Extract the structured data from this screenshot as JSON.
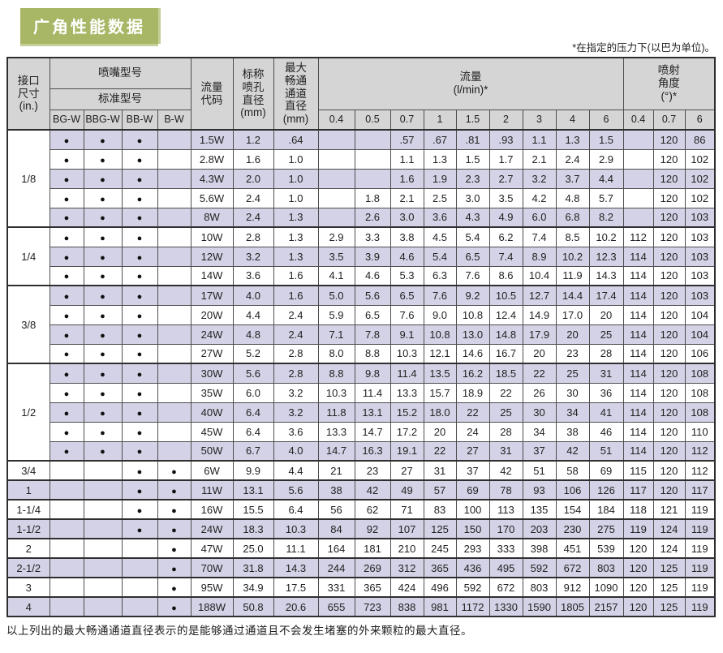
{
  "title": "广角性能数据",
  "pressure_note": "*在指定的压力下(以巴为单位)。",
  "footer_note": "以上列出的最大畅通通道直径表示的是能够通过通道且不会发生堵塞的外来颗粒的最大直径。",
  "colors": {
    "accent_green": "#a7b766",
    "header_gray": "#d5d5d5",
    "stripe_lavender": "#d3d2e6"
  },
  "table": {
    "headers": {
      "size": "接口\n尺寸\n(in.)",
      "nozzle_model": "喷嘴型号",
      "standard_model": "标准型号",
      "flow_code": "流量\n代码",
      "orifice": "标称\n喷孔\n直径\n(mm)",
      "passage": "最大\n畅通\n通道\n直径\n(mm)",
      "flow": "流量\n(l/min)*",
      "angle": "喷射\n角度\n(°)*"
    },
    "model_columns": [
      "BG-W",
      "BBG-W",
      "BB-W",
      "B-W"
    ],
    "flow_pressures": [
      "0.4",
      "0.5",
      "0.7",
      "1",
      "1.5",
      "2",
      "3",
      "4",
      "6"
    ],
    "angle_pressures": [
      "0.4",
      "0.7",
      "6"
    ],
    "groups": [
      {
        "size": "1/8",
        "rows": [
          {
            "models": [
              1,
              1,
              1,
              0
            ],
            "code": "1.5W",
            "orifice": "1.2",
            "passage": ".64",
            "flow": [
              "",
              "",
              ".57",
              ".67",
              ".81",
              ".93",
              "1.1",
              "1.3",
              "1.5"
            ],
            "angle": [
              "",
              "120",
              "86"
            ]
          },
          {
            "models": [
              1,
              1,
              1,
              0
            ],
            "code": "2.8W",
            "orifice": "1.6",
            "passage": "1.0",
            "flow": [
              "",
              "",
              "1.1",
              "1.3",
              "1.5",
              "1.7",
              "2.1",
              "2.4",
              "2.9"
            ],
            "angle": [
              "",
              "120",
              "102"
            ]
          },
          {
            "models": [
              1,
              1,
              1,
              0
            ],
            "code": "4.3W",
            "orifice": "2.0",
            "passage": "1.0",
            "flow": [
              "",
              "",
              "1.6",
              "1.9",
              "2.3",
              "2.7",
              "3.2",
              "3.7",
              "4.4"
            ],
            "angle": [
              "",
              "120",
              "102"
            ]
          },
          {
            "models": [
              1,
              1,
              1,
              0
            ],
            "code": "5.6W",
            "orifice": "2.4",
            "passage": "1.0",
            "flow": [
              "",
              "1.8",
              "2.1",
              "2.5",
              "3.0",
              "3.5",
              "4.2",
              "4.8",
              "5.7"
            ],
            "angle": [
              "",
              "120",
              "102"
            ]
          },
          {
            "models": [
              1,
              1,
              1,
              0
            ],
            "code": "8W",
            "orifice": "2.4",
            "passage": "1.3",
            "flow": [
              "",
              "2.6",
              "3.0",
              "3.6",
              "4.3",
              "4.9",
              "6.0",
              "6.8",
              "8.2"
            ],
            "angle": [
              "",
              "120",
              "103"
            ]
          }
        ]
      },
      {
        "size": "1/4",
        "rows": [
          {
            "models": [
              1,
              1,
              1,
              0
            ],
            "code": "10W",
            "orifice": "2.8",
            "passage": "1.3",
            "flow": [
              "2.9",
              "3.3",
              "3.8",
              "4.5",
              "5.4",
              "6.2",
              "7.4",
              "8.5",
              "10.2"
            ],
            "angle": [
              "112",
              "120",
              "103"
            ]
          },
          {
            "models": [
              1,
              1,
              1,
              0
            ],
            "code": "12W",
            "orifice": "3.2",
            "passage": "1.3",
            "flow": [
              "3.5",
              "3.9",
              "4.6",
              "5.4",
              "6.5",
              "7.4",
              "8.9",
              "10.2",
              "12.3"
            ],
            "angle": [
              "114",
              "120",
              "103"
            ]
          },
          {
            "models": [
              1,
              1,
              1,
              0
            ],
            "code": "14W",
            "orifice": "3.6",
            "passage": "1.6",
            "flow": [
              "4.1",
              "4.6",
              "5.3",
              "6.3",
              "7.6",
              "8.6",
              "10.4",
              "11.9",
              "14.3"
            ],
            "angle": [
              "114",
              "120",
              "103"
            ]
          }
        ]
      },
      {
        "size": "3/8",
        "rows": [
          {
            "models": [
              1,
              1,
              1,
              0
            ],
            "code": "17W",
            "orifice": "4.0",
            "passage": "1.6",
            "flow": [
              "5.0",
              "5.6",
              "6.5",
              "7.6",
              "9.2",
              "10.5",
              "12.7",
              "14.4",
              "17.4"
            ],
            "angle": [
              "114",
              "120",
              "103"
            ]
          },
          {
            "models": [
              1,
              1,
              1,
              0
            ],
            "code": "20W",
            "orifice": "4.4",
            "passage": "2.4",
            "flow": [
              "5.9",
              "6.5",
              "7.6",
              "9.0",
              "10.8",
              "12.4",
              "14.9",
              "17.0",
              "20"
            ],
            "angle": [
              "114",
              "120",
              "104"
            ]
          },
          {
            "models": [
              1,
              1,
              1,
              0
            ],
            "code": "24W",
            "orifice": "4.8",
            "passage": "2.4",
            "flow": [
              "7.1",
              "7.8",
              "9.1",
              "10.8",
              "13.0",
              "14.8",
              "17.9",
              "20",
              "25"
            ],
            "angle": [
              "114",
              "120",
              "104"
            ]
          },
          {
            "models": [
              1,
              1,
              1,
              0
            ],
            "code": "27W",
            "orifice": "5.2",
            "passage": "2.8",
            "flow": [
              "8.0",
              "8.8",
              "10.3",
              "12.1",
              "14.6",
              "16.7",
              "20",
              "23",
              "28"
            ],
            "angle": [
              "114",
              "120",
              "106"
            ]
          }
        ]
      },
      {
        "size": "1/2",
        "rows": [
          {
            "models": [
              1,
              1,
              1,
              0
            ],
            "code": "30W",
            "orifice": "5.6",
            "passage": "2.8",
            "flow": [
              "8.8",
              "9.8",
              "11.4",
              "13.5",
              "16.2",
              "18.5",
              "22",
              "25",
              "31"
            ],
            "angle": [
              "114",
              "120",
              "108"
            ]
          },
          {
            "models": [
              1,
              1,
              1,
              0
            ],
            "code": "35W",
            "orifice": "6.0",
            "passage": "3.2",
            "flow": [
              "10.3",
              "11.4",
              "13.3",
              "15.7",
              "18.9",
              "22",
              "26",
              "30",
              "36"
            ],
            "angle": [
              "114",
              "120",
              "108"
            ]
          },
          {
            "models": [
              1,
              1,
              1,
              0
            ],
            "code": "40W",
            "orifice": "6.4",
            "passage": "3.2",
            "flow": [
              "11.8",
              "13.1",
              "15.2",
              "18.0",
              "22",
              "25",
              "30",
              "34",
              "41"
            ],
            "angle": [
              "114",
              "120",
              "108"
            ]
          },
          {
            "models": [
              1,
              1,
              1,
              0
            ],
            "code": "45W",
            "orifice": "6.4",
            "passage": "3.6",
            "flow": [
              "13.3",
              "14.7",
              "17.2",
              "20",
              "24",
              "28",
              "34",
              "38",
              "46"
            ],
            "angle": [
              "114",
              "120",
              "110"
            ]
          },
          {
            "models": [
              1,
              1,
              1,
              0
            ],
            "code": "50W",
            "orifice": "6.7",
            "passage": "4.0",
            "flow": [
              "14.7",
              "16.3",
              "19.1",
              "22",
              "27",
              "31",
              "37",
              "42",
              "51"
            ],
            "angle": [
              "114",
              "120",
              "112"
            ]
          }
        ]
      },
      {
        "size": "3/4",
        "rows": [
          {
            "models": [
              0,
              0,
              1,
              1
            ],
            "code": "6W",
            "orifice": "9.9",
            "passage": "4.4",
            "flow": [
              "21",
              "23",
              "27",
              "31",
              "37",
              "42",
              "51",
              "58",
              "69"
            ],
            "angle": [
              "115",
              "120",
              "112"
            ]
          }
        ]
      },
      {
        "size": "1",
        "rows": [
          {
            "models": [
              0,
              0,
              1,
              1
            ],
            "code": "11W",
            "orifice": "13.1",
            "passage": "5.6",
            "flow": [
              "38",
              "42",
              "49",
              "57",
              "69",
              "78",
              "93",
              "106",
              "126"
            ],
            "angle": [
              "117",
              "120",
              "117"
            ]
          }
        ]
      },
      {
        "size": "1-1/4",
        "rows": [
          {
            "models": [
              0,
              0,
              1,
              1
            ],
            "code": "16W",
            "orifice": "15.5",
            "passage": "6.4",
            "flow": [
              "56",
              "62",
              "71",
              "83",
              "100",
              "113",
              "135",
              "154",
              "184"
            ],
            "angle": [
              "118",
              "121",
              "119"
            ]
          }
        ]
      },
      {
        "size": "1-1/2",
        "rows": [
          {
            "models": [
              0,
              0,
              1,
              1
            ],
            "code": "24W",
            "orifice": "18.3",
            "passage": "10.3",
            "flow": [
              "84",
              "92",
              "107",
              "125",
              "150",
              "170",
              "203",
              "230",
              "275"
            ],
            "angle": [
              "119",
              "124",
              "119"
            ]
          }
        ]
      },
      {
        "size": "2",
        "rows": [
          {
            "models": [
              0,
              0,
              0,
              1
            ],
            "code": "47W",
            "orifice": "25.0",
            "passage": "11.1",
            "flow": [
              "164",
              "181",
              "210",
              "245",
              "293",
              "333",
              "398",
              "451",
              "539"
            ],
            "angle": [
              "120",
              "124",
              "119"
            ]
          }
        ]
      },
      {
        "size": "2-1/2",
        "rows": [
          {
            "models": [
              0,
              0,
              0,
              1
            ],
            "code": "70W",
            "orifice": "31.8",
            "passage": "14.3",
            "flow": [
              "244",
              "269",
              "312",
              "365",
              "436",
              "495",
              "592",
              "672",
              "803"
            ],
            "angle": [
              "120",
              "125",
              "119"
            ]
          }
        ]
      },
      {
        "size": "3",
        "rows": [
          {
            "models": [
              0,
              0,
              0,
              1
            ],
            "code": "95W",
            "orifice": "34.9",
            "passage": "17.5",
            "flow": [
              "331",
              "365",
              "424",
              "496",
              "592",
              "672",
              "803",
              "912",
              "1090"
            ],
            "angle": [
              "120",
              "125",
              "119"
            ]
          }
        ]
      },
      {
        "size": "4",
        "rows": [
          {
            "models": [
              0,
              0,
              0,
              1
            ],
            "code": "188W",
            "orifice": "50.8",
            "passage": "20.6",
            "flow": [
              "655",
              "723",
              "838",
              "981",
              "1172",
              "1330",
              "1590",
              "1805",
              "2157"
            ],
            "angle": [
              "120",
              "125",
              "119"
            ]
          }
        ]
      }
    ]
  }
}
